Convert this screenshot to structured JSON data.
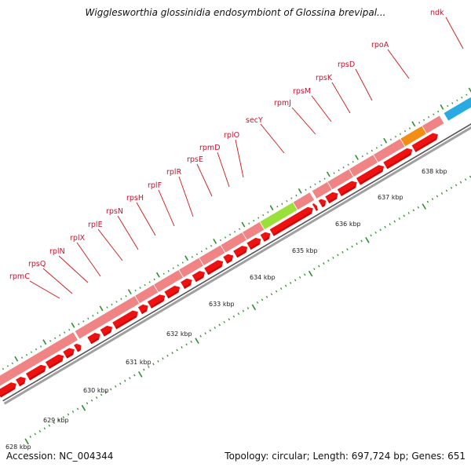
{
  "title": "Wigglesworthia glossinidia endosymbiont of Glossina brevipal...",
  "footer": {
    "accession": "Accession: NC_004344",
    "summary": "Topology: circular; Length: 697,724 bp; Genes: 651"
  },
  "colors": {
    "cds": "#ee1111",
    "feature_default": "#f08484",
    "secY": "#9be03a",
    "rpoA": "#f28e16",
    "ndk": "#29abe2",
    "tick": "#2f8f2f",
    "backbone": "#a0a0a0"
  },
  "kbp_labels": [
    "628 kbp",
    "629 kbp",
    "630 kbp",
    "631 kbp",
    "632 kbp",
    "633 kbp",
    "634 kbp",
    "635 kbp",
    "636 kbp",
    "637 kbp",
    "638 kbp"
  ],
  "genes": [
    "rpmC",
    "rpsQ",
    "rplN",
    "rplX",
    "rplE",
    "rpsN",
    "rpsH",
    "rplF",
    "rplR",
    "rpsE",
    "rpmD",
    "rplO",
    "secY",
    "rpmJ",
    "rpsM",
    "rpsK",
    "rpsD",
    "rpoA",
    "ndk"
  ]
}
